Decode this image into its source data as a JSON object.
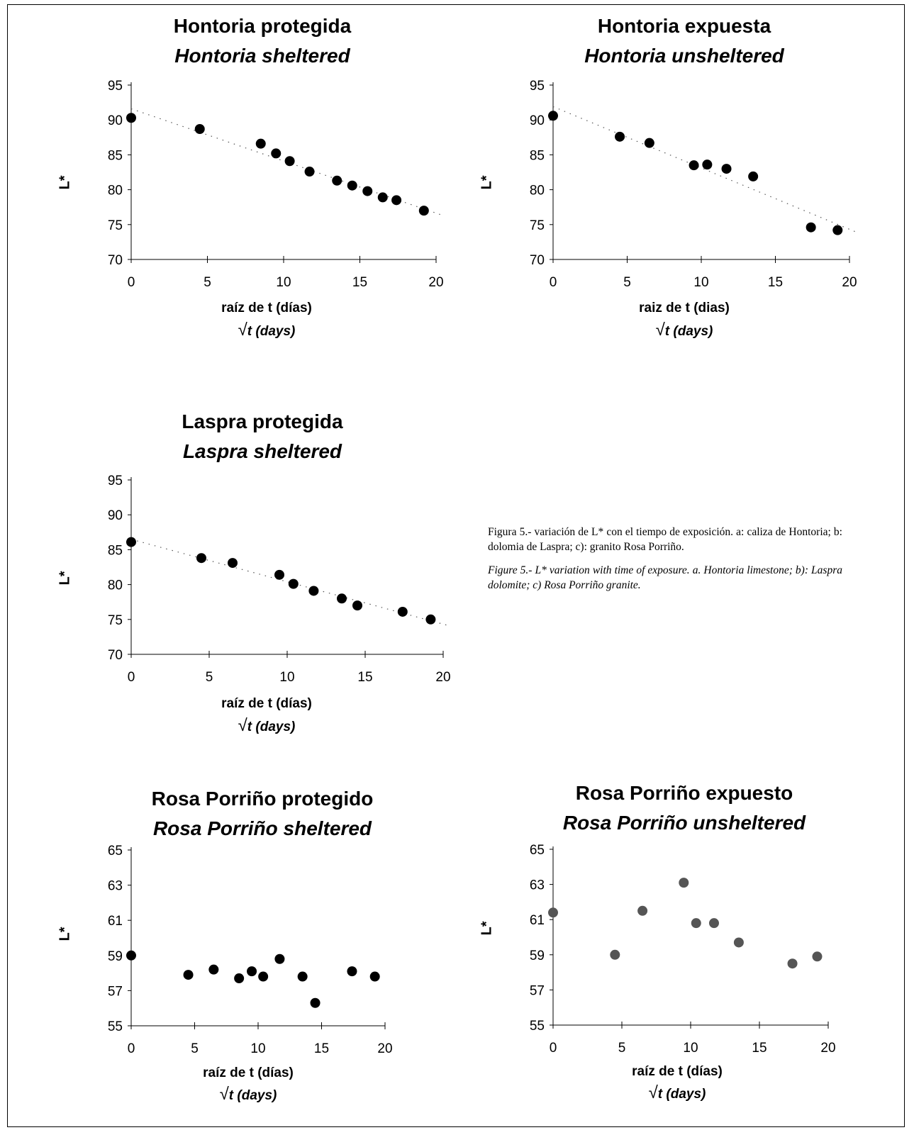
{
  "caption": {
    "es": "Figura 5.- variación de L* con el tiempo de exposición. a: caliza de Hontoria; b: dolomia de Laspra; c): granito Rosa Porriño.",
    "en": "Figure 5.- L* variation with time of exposure. a. Hontoria limestone; b): Laspra dolomite; c) Rosa Porriño granite."
  },
  "chart_data": [
    {
      "type": "scatter",
      "title": "Hontoria protegida",
      "subtitle": "Hontoria sheltered",
      "xlabel": "raíz de t (días)",
      "xlabel_en": "t (days)",
      "ylabel": "L*",
      "xlim": [
        0,
        20
      ],
      "ylim": [
        70,
        95
      ],
      "xticks": [
        "0",
        "5",
        "10",
        "15",
        "20"
      ],
      "yticks": [
        "70",
        "75",
        "80",
        "85",
        "90",
        "95"
      ],
      "trendline": true,
      "marker_color": "#000000",
      "x": [
        0,
        4.5,
        8.5,
        9.5,
        10.4,
        11.7,
        13.5,
        14.5,
        15.5,
        16.5,
        17.4,
        19.2
      ],
      "y": [
        90.3,
        88.7,
        86.6,
        85.2,
        84.1,
        82.6,
        81.3,
        80.6,
        79.8,
        78.9,
        78.5,
        77.0
      ]
    },
    {
      "type": "scatter",
      "title": "Hontoria expuesta",
      "subtitle": "Hontoria unsheltered",
      "xlabel": "raiz de t (dias)",
      "xlabel_en": "t (days)",
      "ylabel": "L*",
      "xlim": [
        0,
        20
      ],
      "ylim": [
        70,
        95
      ],
      "xticks": [
        "0",
        "5",
        "10",
        "15",
        "20"
      ],
      "yticks": [
        "70",
        "75",
        "80",
        "85",
        "90",
        "95"
      ],
      "trendline": true,
      "marker_color": "#000000",
      "x": [
        0,
        4.5,
        6.5,
        9.5,
        10.4,
        11.7,
        13.5,
        17.4,
        19.2
      ],
      "y": [
        90.6,
        87.6,
        86.7,
        83.5,
        83.6,
        83.0,
        81.9,
        74.6,
        74.2
      ]
    },
    {
      "type": "scatter",
      "title": "Laspra protegida",
      "subtitle": "Laspra sheltered",
      "xlabel": "raíz de t (días)",
      "xlabel_en": "t (days)",
      "ylabel": "L*",
      "xlim": [
        0,
        20
      ],
      "ylim": [
        70,
        95
      ],
      "xticks": [
        "0",
        "5",
        "10",
        "15",
        "20"
      ],
      "yticks": [
        "70",
        "75",
        "80",
        "85",
        "90",
        "95"
      ],
      "trendline": true,
      "marker_color": "#000000",
      "x": [
        0,
        4.5,
        6.5,
        9.5,
        10.4,
        11.7,
        13.5,
        14.5,
        17.4,
        19.2
      ],
      "y": [
        86.1,
        83.8,
        83.1,
        81.4,
        80.1,
        79.1,
        78.0,
        77.0,
        76.1,
        75.0
      ]
    },
    {
      "type": "scatter",
      "title": "Rosa Porriño protegido",
      "subtitle": "Rosa Porriño sheltered",
      "xlabel": "raíz de t (días)",
      "xlabel_en": "t (days)",
      "ylabel": "L*",
      "xlim": [
        0,
        20
      ],
      "ylim": [
        55,
        65
      ],
      "xticks": [
        "0",
        "5",
        "10",
        "15",
        "20"
      ],
      "yticks": [
        "55",
        "57",
        "59",
        "61",
        "63",
        "65"
      ],
      "trendline": false,
      "marker_color": "#000000",
      "x": [
        0,
        4.5,
        6.5,
        8.5,
        9.5,
        10.4,
        11.7,
        13.5,
        14.5,
        17.4,
        19.2
      ],
      "y": [
        59.0,
        57.9,
        58.2,
        57.7,
        58.1,
        57.8,
        58.8,
        57.8,
        56.3,
        58.1,
        57.8
      ]
    },
    {
      "type": "scatter",
      "title": "Rosa Porriño expuesto",
      "subtitle": "Rosa Porriño unsheltered",
      "xlabel": "raíz de t (días)",
      "xlabel_en": "t (days)",
      "ylabel": "L*",
      "xlim": [
        0,
        20
      ],
      "ylim": [
        55,
        65
      ],
      "xticks": [
        "0",
        "5",
        "10",
        "15",
        "20"
      ],
      "yticks": [
        "55",
        "57",
        "59",
        "61",
        "63",
        "65"
      ],
      "trendline": false,
      "marker_color": "#555555",
      "x": [
        0,
        4.5,
        6.5,
        9.5,
        10.4,
        11.7,
        13.5,
        17.4,
        19.2
      ],
      "y": [
        61.4,
        59.0,
        61.5,
        63.1,
        60.8,
        60.8,
        59.7,
        58.5,
        58.9
      ]
    }
  ]
}
